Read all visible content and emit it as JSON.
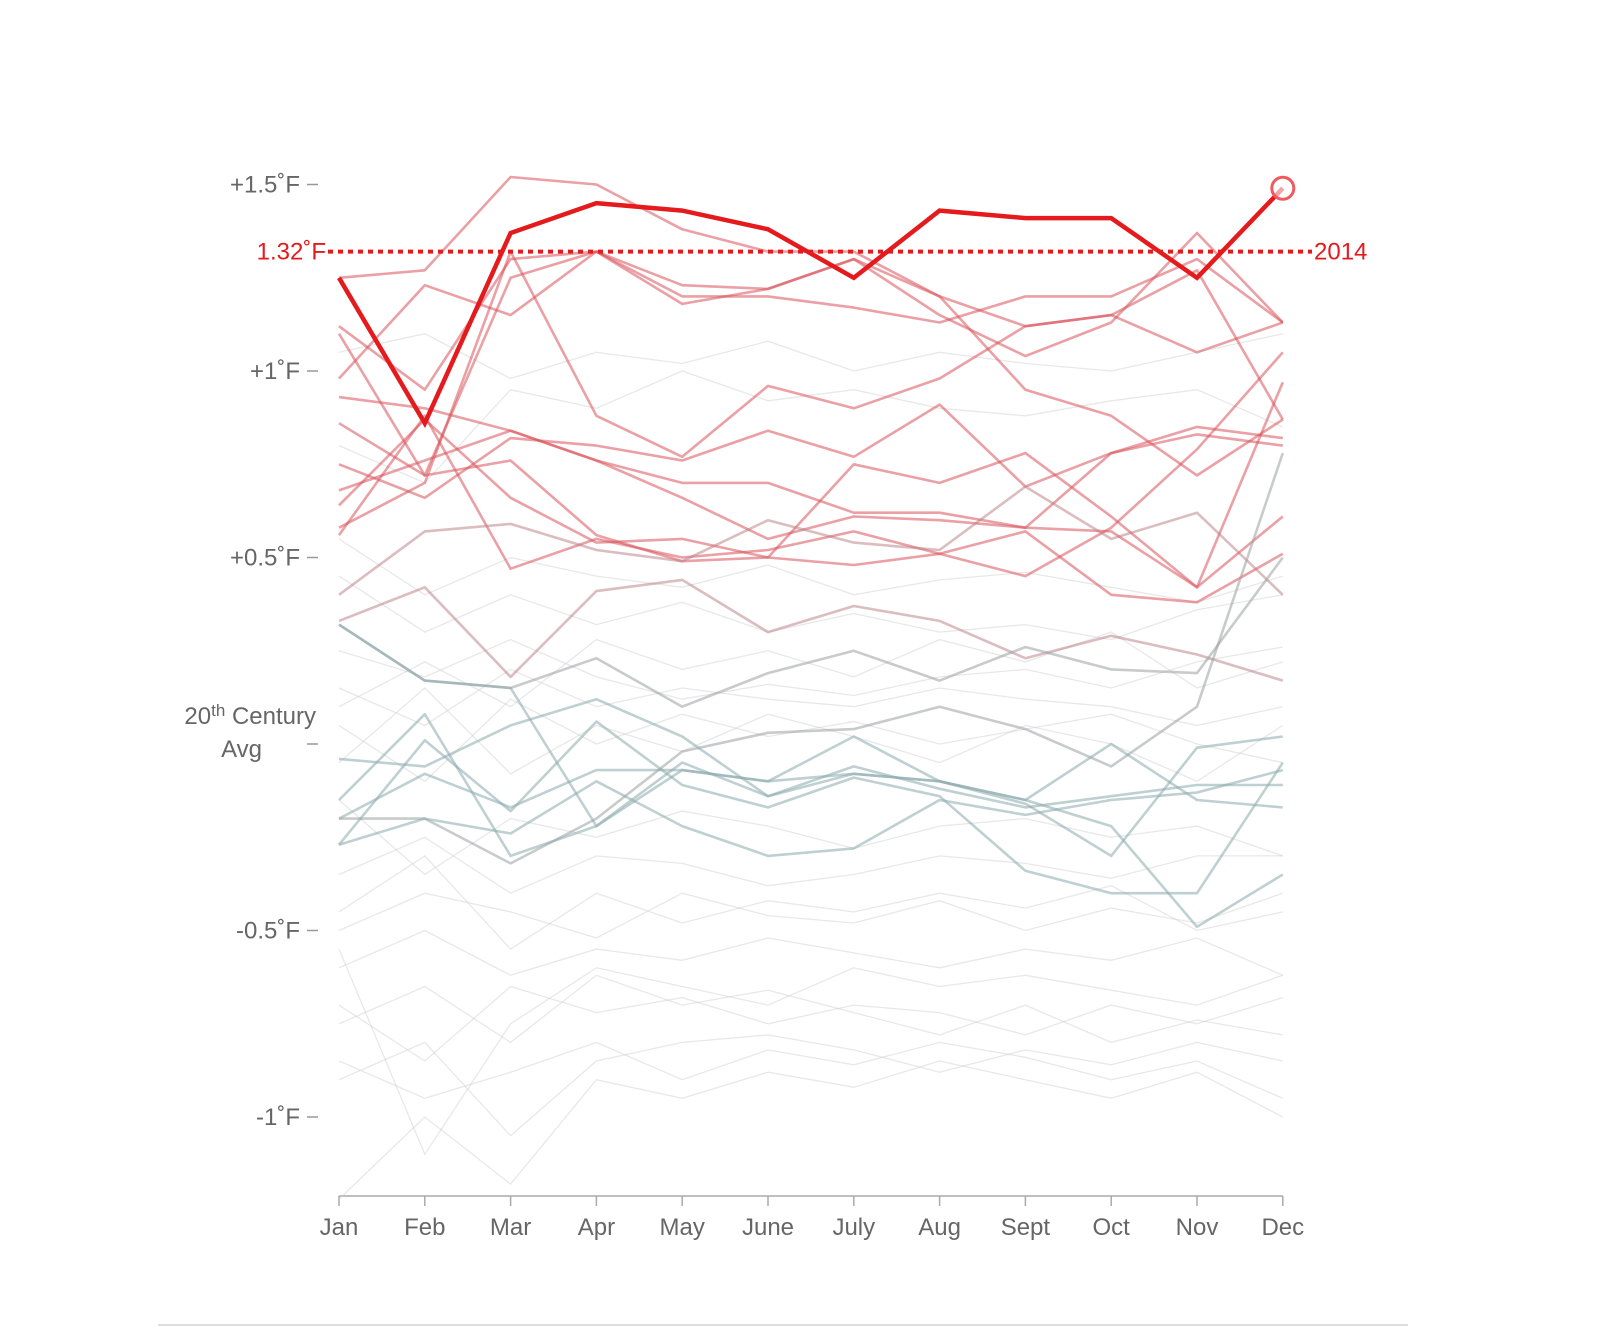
{
  "chart_data": {
    "type": "line",
    "title": "",
    "xlabel": "",
    "ylabel": "",
    "categories": [
      "Jan",
      "Feb",
      "Mar",
      "Apr",
      "May",
      "June",
      "July",
      "Aug",
      "Sept",
      "Oct",
      "Nov",
      "Dec"
    ],
    "ylim": [
      -1.22,
      1.6
    ],
    "y_ticks": [
      {
        "value": 1.5,
        "label": "+1.5˚F"
      },
      {
        "value": 1.0,
        "label": "+1˚F"
      },
      {
        "value": 0.5,
        "label": "+0.5˚F"
      },
      {
        "value": 0.0,
        "label_sup_pre": "20",
        "label_sup": "th",
        "label_post": " Century",
        "label_line2": "Avg"
      },
      {
        "value": -0.5,
        "label": "-0.5˚F"
      },
      {
        "value": -1.0,
        "label": "-1˚F"
      }
    ],
    "reference_line": {
      "value": 1.32,
      "label": "1.32˚F",
      "end_label": "2014",
      "color": "#e41a1c"
    },
    "highlight": {
      "name": "2014",
      "color": "#e41a1c",
      "values": [
        1.25,
        0.86,
        1.37,
        1.45,
        1.43,
        1.38,
        1.25,
        1.43,
        1.41,
        1.41,
        1.25,
        1.49
      ]
    },
    "series": [
      {
        "values": [
          1.25,
          1.27,
          1.52,
          1.5,
          1.38,
          1.32,
          1.32,
          1.2,
          0.95,
          0.88,
          0.72,
          0.87
        ],
        "anomaly": 1.2
      },
      {
        "values": [
          1.12,
          0.95,
          1.3,
          1.32,
          1.2,
          1.2,
          1.17,
          1.13,
          1.2,
          1.2,
          1.3,
          1.13
        ],
        "anomaly": 1.18
      },
      {
        "values": [
          0.98,
          1.23,
          1.15,
          1.32,
          1.18,
          1.22,
          1.3,
          1.15,
          1.04,
          1.13,
          1.37,
          1.13
        ],
        "anomaly": 1.16
      },
      {
        "values": [
          1.1,
          0.72,
          1.25,
          1.32,
          1.23,
          1.22,
          1.3,
          1.2,
          1.12,
          1.15,
          1.05,
          1.13
        ],
        "anomaly": 1.12
      },
      {
        "values": [
          0.58,
          0.7,
          1.32,
          0.88,
          0.77,
          0.96,
          0.9,
          0.98,
          1.12,
          1.15,
          1.27,
          0.87
        ],
        "anomaly": 0.95
      },
      {
        "values": [
          0.75,
          0.66,
          0.82,
          0.8,
          0.76,
          0.84,
          0.77,
          0.91,
          0.69,
          0.78,
          0.83,
          0.8
        ],
        "anomaly": 0.78
      },
      {
        "values": [
          0.93,
          0.9,
          0.84,
          0.76,
          0.7,
          0.7,
          0.62,
          0.62,
          0.58,
          0.57,
          0.42,
          0.97
        ],
        "anomaly": 0.72
      },
      {
        "values": [
          0.86,
          0.72,
          0.76,
          0.56,
          0.49,
          0.5,
          0.75,
          0.7,
          0.78,
          0.61,
          0.42,
          0.61
        ],
        "anomaly": 0.65
      },
      {
        "values": [
          0.68,
          0.76,
          0.84,
          0.76,
          0.66,
          0.55,
          0.61,
          0.6,
          0.58,
          0.78,
          0.85,
          0.82
        ],
        "anomaly": 0.7
      },
      {
        "values": [
          0.64,
          0.87,
          0.66,
          0.54,
          0.55,
          0.5,
          0.48,
          0.51,
          0.45,
          0.58,
          0.79,
          1.05
        ],
        "anomaly": 0.62
      },
      {
        "values": [
          0.56,
          0.88,
          0.47,
          0.55,
          0.5,
          0.52,
          0.57,
          0.51,
          0.57,
          0.4,
          0.38,
          0.51
        ],
        "anomaly": 0.55
      },
      {
        "values": [
          0.4,
          0.57,
          0.59,
          0.52,
          0.49,
          0.6,
          0.54,
          0.52,
          0.69,
          0.55,
          0.62,
          0.4
        ],
        "anomaly": 0.52
      },
      {
        "values": [
          0.33,
          0.42,
          0.18,
          0.41,
          0.44,
          0.3,
          0.37,
          0.33,
          0.23,
          0.29,
          0.24,
          0.17
        ],
        "anomaly": 0.31
      },
      {
        "values": [
          0.32,
          0.17,
          0.15,
          0.23,
          0.1,
          0.19,
          0.25,
          0.17,
          0.26,
          0.2,
          0.19,
          0.5
        ],
        "anomaly": 0.22
      },
      {
        "values": [
          -0.2,
          -0.2,
          -0.32,
          -0.2,
          -0.02,
          0.03,
          0.04,
          0.1,
          0.04,
          -0.06,
          0.1,
          0.78
        ],
        "anomaly": 0.05
      },
      {
        "values": [
          -0.04,
          -0.06,
          0.05,
          0.12,
          0.02,
          -0.14,
          -0.08,
          -0.1,
          -0.16,
          -0.3,
          -0.01,
          0.02
        ],
        "anomaly": -0.05
      },
      {
        "values": [
          0.32,
          0.17,
          0.15,
          -0.22,
          -0.05,
          -0.14,
          -0.06,
          -0.12,
          -0.17,
          -0.14,
          -0.11,
          -0.11
        ],
        "anomaly": -0.03
      },
      {
        "values": [
          -0.27,
          0.01,
          -0.18,
          0.06,
          -0.11,
          -0.17,
          -0.09,
          -0.14,
          -0.34,
          -0.4,
          -0.4,
          -0.05
        ],
        "anomaly": -0.17
      },
      {
        "values": [
          -0.27,
          -0.2,
          -0.24,
          -0.1,
          -0.22,
          -0.3,
          -0.28,
          -0.15,
          -0.19,
          -0.15,
          -0.13,
          -0.07
        ],
        "anomaly": -0.19
      },
      {
        "values": [
          -0.15,
          0.08,
          -0.3,
          -0.22,
          -0.07,
          -0.1,
          0.02,
          -0.1,
          -0.15,
          0.0,
          -0.15,
          -0.17
        ],
        "anomaly": -0.11
      },
      {
        "values": [
          -0.2,
          -0.08,
          -0.17,
          -0.07,
          -0.07,
          -0.1,
          -0.08,
          -0.1,
          -0.15,
          -0.22,
          -0.49,
          -0.35
        ],
        "anomaly": -0.18
      },
      {
        "values": [
          0.25,
          0.18,
          0.28,
          0.18,
          0.12,
          0.16,
          0.13,
          0.18,
          0.2,
          0.15,
          0.22,
          0.26
        ],
        "gray": 0.95
      },
      {
        "values": [
          0.1,
          0.22,
          0.1,
          0.28,
          0.2,
          0.25,
          0.18,
          0.28,
          0.22,
          0.3,
          0.15,
          0.22
        ],
        "gray": 0.95
      },
      {
        "values": [
          -0.05,
          0.15,
          -0.08,
          0.05,
          -0.02,
          0.08,
          0.02,
          -0.05,
          0.05,
          0.0,
          -0.1,
          0.05
        ],
        "gray": 0.95
      },
      {
        "values": [
          -0.35,
          -0.25,
          -0.4,
          -0.3,
          -0.32,
          -0.38,
          -0.35,
          -0.3,
          -0.32,
          -0.36,
          -0.3,
          -0.3
        ],
        "gray": 0.95
      },
      {
        "values": [
          -0.45,
          -0.3,
          -0.55,
          -0.4,
          -0.48,
          -0.42,
          -0.45,
          -0.4,
          -0.44,
          -0.38,
          -0.5,
          -0.45
        ],
        "gray": 0.95
      },
      {
        "values": [
          -0.6,
          -0.5,
          -0.62,
          -0.55,
          -0.58,
          -0.52,
          -0.56,
          -0.6,
          -0.55,
          -0.58,
          -0.52,
          -0.62
        ],
        "gray": 0.95
      },
      {
        "values": [
          -0.7,
          -0.85,
          -0.65,
          -0.72,
          -0.68,
          -0.75,
          -0.7,
          -0.72,
          -0.78,
          -0.7,
          -0.75,
          -0.68
        ],
        "gray": 0.95
      },
      {
        "values": [
          -0.85,
          -0.95,
          -0.88,
          -0.8,
          -0.9,
          -0.82,
          -0.86,
          -0.8,
          -0.84,
          -0.9,
          -0.85,
          -0.95
        ],
        "gray": 0.95
      },
      {
        "values": [
          -1.22,
          -1.0,
          -1.18,
          -0.9,
          -0.95,
          -0.88,
          -0.92,
          -0.85,
          -0.9,
          -0.95,
          -0.88,
          -1.0
        ],
        "gray": 0.95
      },
      {
        "values": [
          -0.55,
          -1.1,
          -0.75,
          -0.6,
          -0.65,
          -0.7,
          -0.6,
          -0.65,
          -0.62,
          -0.66,
          -0.7,
          -0.62
        ],
        "gray": 0.95
      },
      {
        "values": [
          0.45,
          0.3,
          0.4,
          0.32,
          0.38,
          0.3,
          0.35,
          0.3,
          0.32,
          0.28,
          0.36,
          0.4
        ],
        "gray": 0.95
      },
      {
        "values": [
          0.55,
          0.4,
          0.5,
          0.45,
          0.42,
          0.48,
          0.4,
          0.44,
          0.46,
          0.42,
          0.38,
          0.45
        ],
        "gray": 0.95
      },
      {
        "values": [
          0.8,
          0.7,
          0.95,
          0.9,
          1.0,
          0.92,
          0.95,
          0.9,
          0.88,
          0.92,
          0.95,
          0.85
        ],
        "gray": 0.95
      },
      {
        "values": [
          1.05,
          1.1,
          0.98,
          1.05,
          1.02,
          1.08,
          1.0,
          1.05,
          1.02,
          1.0,
          1.05,
          1.1
        ],
        "gray": 0.95
      },
      {
        "values": [
          -0.15,
          -0.35,
          -0.2,
          -0.25,
          -0.18,
          -0.22,
          -0.28,
          -0.22,
          -0.2,
          -0.25,
          -0.22,
          -0.3
        ],
        "gray": 0.95
      },
      {
        "values": [
          0.05,
          -0.1,
          0.12,
          0.0,
          0.08,
          0.02,
          0.06,
          0.0,
          0.04,
          0.08,
          0.0,
          -0.05
        ],
        "gray": 0.95
      },
      {
        "values": [
          -0.5,
          -0.4,
          -0.45,
          -0.52,
          -0.4,
          -0.46,
          -0.48,
          -0.42,
          -0.5,
          -0.44,
          -0.48,
          -0.4
        ],
        "gray": 0.95
      },
      {
        "values": [
          -0.75,
          -0.65,
          -0.8,
          -0.62,
          -0.7,
          -0.66,
          -0.72,
          -0.78,
          -0.7,
          -0.8,
          -0.74,
          -0.78
        ],
        "gray": 0.95
      },
      {
        "values": [
          0.15,
          0.05,
          0.2,
          0.1,
          0.15,
          0.12,
          0.1,
          0.15,
          0.12,
          0.1,
          0.05,
          0.1
        ],
        "gray": 0.95
      },
      {
        "values": [
          -0.9,
          -0.8,
          -1.05,
          -0.85,
          -0.8,
          -0.78,
          -0.82,
          -0.88,
          -0.82,
          -0.86,
          -0.8,
          -0.85
        ],
        "gray": 0.95
      }
    ]
  }
}
